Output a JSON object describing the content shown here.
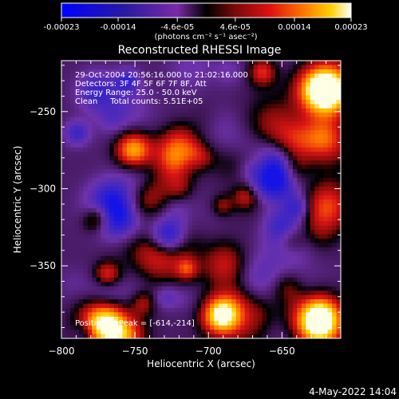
{
  "chart_data": {
    "type": "heatmap",
    "title": "Reconstructed RHESSI Image",
    "xlabel": "Heliocentric X (arcsec)",
    "ylabel": "Heliocentric Y (arcsec)",
    "xlim": [
      -800,
      -610
    ],
    "ylim": [
      -397,
      -217
    ],
    "xticks": [
      -800,
      -750,
      -700,
      -650
    ],
    "yticks": [
      -250,
      -300,
      -350
    ],
    "grid": false,
    "colorbar": {
      "position": "top",
      "range": [
        -0.00023,
        0.00023
      ],
      "ticks": [
        "-0.00023",
        "-0.00014",
        "-4.6e-05",
        "4.6e-05",
        "0.00014",
        "0.00023"
      ],
      "unit_label": "(photons cm⁻² s⁻¹ asec⁻²)"
    },
    "annotations": [
      "29-Oct-2004 20:56:16.000 to 21:02:16.000",
      "Detectors: 3F 4F 5F 6F 7F 8F, Att",
      "Energy Range: 25.0 - 50.0 keV",
      "Clean     Total counts: 5.51E+05",
      "Position of Peak = [-614,-214]"
    ],
    "timestamp": "4-May-2022 14:04",
    "values_description": "Noisy CLEAN reconstruction map; positive (red/yellow/white) patches and negative (purple/blue) patches across the field of view."
  }
}
